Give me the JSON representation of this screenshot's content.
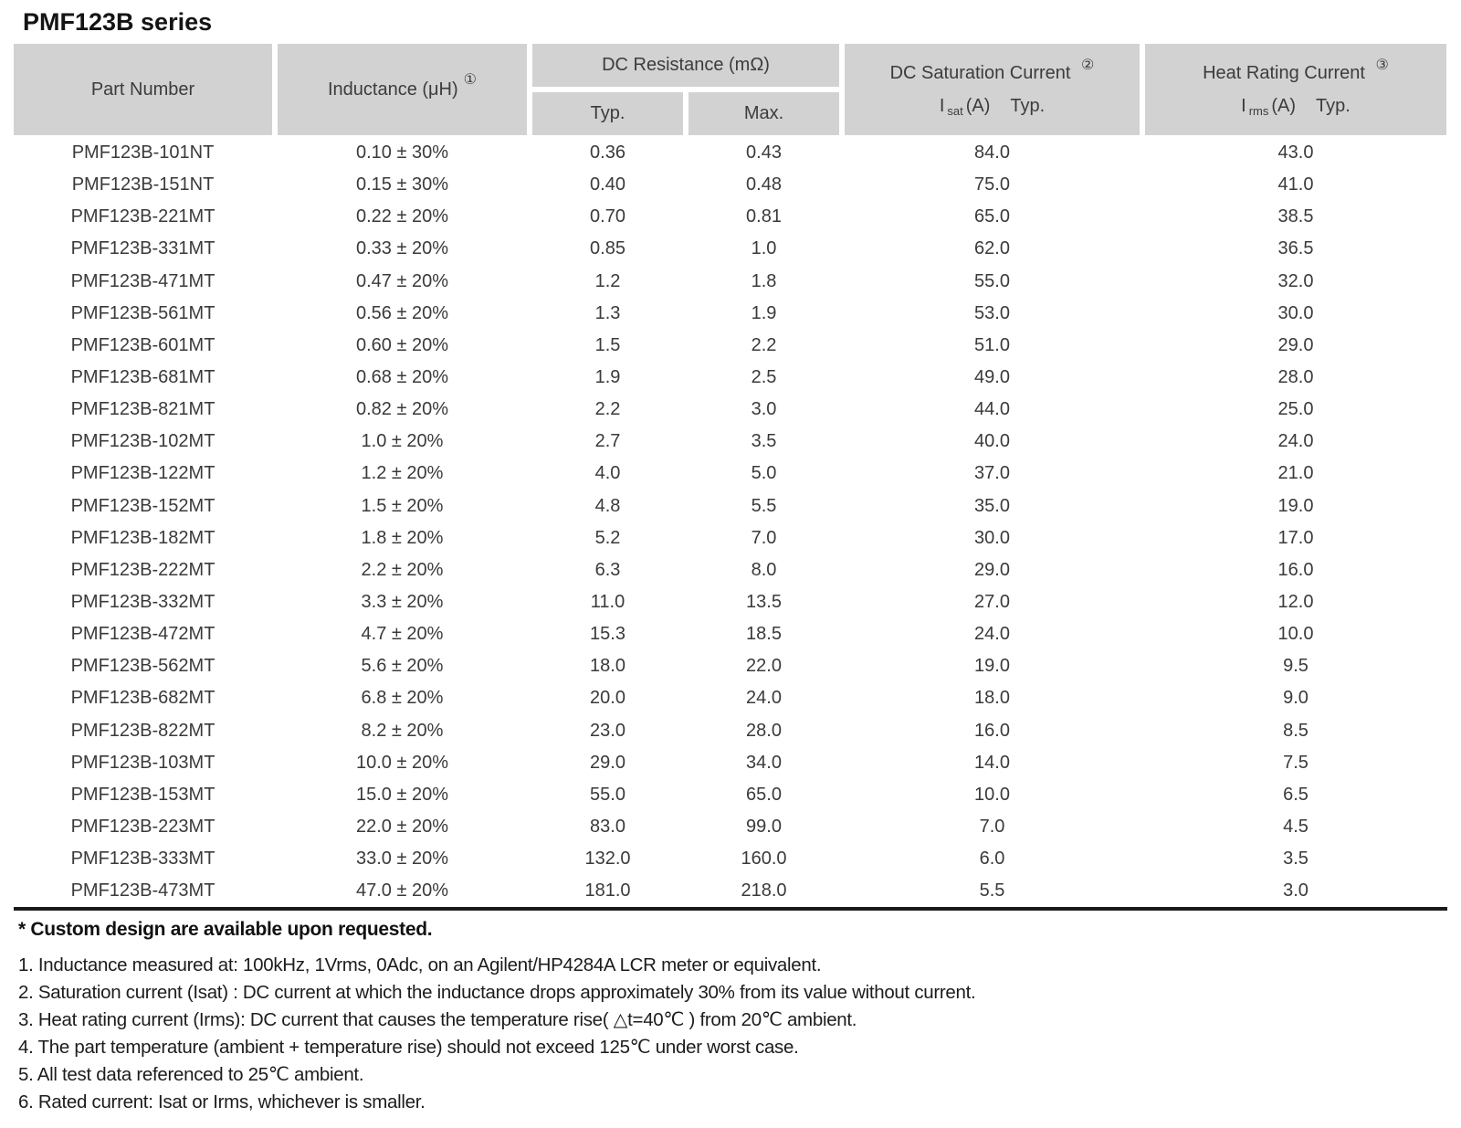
{
  "title": "PMF123B series",
  "colors": {
    "header_bg": "#d2d2d2",
    "body_text": "#3a3a3a",
    "rule": "#1a1a1a"
  },
  "table": {
    "headers": {
      "part_number": "Part Number",
      "inductance": "Inductance (μH)",
      "inductance_note_ref": "①",
      "dc_resistance_group": "DC Resistance (mΩ)",
      "dcr_typ": "Typ.",
      "dcr_max": "Max.",
      "dc_saturation": "DC Saturation Current",
      "dc_saturation_note_ref": "②",
      "sat_line": {
        "base": "I",
        "sub": "sat",
        "unit": "(A)",
        "qual": "Typ."
      },
      "heat_rating": "Heat Rating Current",
      "heat_rating_note_ref": "③",
      "rms_line": {
        "base": "I",
        "sub": "rms",
        "unit": "(A)",
        "qual": "Typ."
      }
    },
    "rows": [
      [
        "PMF123B-101NT",
        "0.10 ± 30%",
        "0.36",
        "0.43",
        "84.0",
        "43.0"
      ],
      [
        "PMF123B-151NT",
        "0.15 ± 30%",
        "0.40",
        "0.48",
        "75.0",
        "41.0"
      ],
      [
        "PMF123B-221MT",
        "0.22 ± 20%",
        "0.70",
        "0.81",
        "65.0",
        "38.5"
      ],
      [
        "PMF123B-331MT",
        "0.33 ± 20%",
        "0.85",
        "1.0",
        "62.0",
        "36.5"
      ],
      [
        "PMF123B-471MT",
        "0.47 ± 20%",
        "1.2",
        "1.8",
        "55.0",
        "32.0"
      ],
      [
        "PMF123B-561MT",
        "0.56 ± 20%",
        "1.3",
        "1.9",
        "53.0",
        "30.0"
      ],
      [
        "PMF123B-601MT",
        "0.60 ± 20%",
        "1.5",
        "2.2",
        "51.0",
        "29.0"
      ],
      [
        "PMF123B-681MT",
        "0.68 ± 20%",
        "1.9",
        "2.5",
        "49.0",
        "28.0"
      ],
      [
        "PMF123B-821MT",
        "0.82 ± 20%",
        "2.2",
        "3.0",
        "44.0",
        "25.0"
      ],
      [
        "PMF123B-102MT",
        "1.0 ± 20%",
        "2.7",
        "3.5",
        "40.0",
        "24.0"
      ],
      [
        "PMF123B-122MT",
        "1.2 ± 20%",
        "4.0",
        "5.0",
        "37.0",
        "21.0"
      ],
      [
        "PMF123B-152MT",
        "1.5 ± 20%",
        "4.8",
        "5.5",
        "35.0",
        "19.0"
      ],
      [
        "PMF123B-182MT",
        "1.8 ± 20%",
        "5.2",
        "7.0",
        "30.0",
        "17.0"
      ],
      [
        "PMF123B-222MT",
        "2.2 ± 20%",
        "6.3",
        "8.0",
        "29.0",
        "16.0"
      ],
      [
        "PMF123B-332MT",
        "3.3 ± 20%",
        "11.0",
        "13.5",
        "27.0",
        "12.0"
      ],
      [
        "PMF123B-472MT",
        "4.7 ± 20%",
        "15.3",
        "18.5",
        "24.0",
        "10.0"
      ],
      [
        "PMF123B-562MT",
        "5.6 ± 20%",
        "18.0",
        "22.0",
        "19.0",
        "9.5"
      ],
      [
        "PMF123B-682MT",
        "6.8 ± 20%",
        "20.0",
        "24.0",
        "18.0",
        "9.0"
      ],
      [
        "PMF123B-822MT",
        "8.2 ± 20%",
        "23.0",
        "28.0",
        "16.0",
        "8.5"
      ],
      [
        "PMF123B-103MT",
        "10.0 ± 20%",
        "29.0",
        "34.0",
        "14.0",
        "7.5"
      ],
      [
        "PMF123B-153MT",
        "15.0 ± 20%",
        "55.0",
        "65.0",
        "10.0",
        "6.5"
      ],
      [
        "PMF123B-223MT",
        "22.0 ± 20%",
        "83.0",
        "99.0",
        "7.0",
        "4.5"
      ],
      [
        "PMF123B-333MT",
        "33.0 ± 20%",
        "132.0",
        "160.0",
        "6.0",
        "3.5"
      ],
      [
        "PMF123B-473MT",
        "47.0 ± 20%",
        "181.0",
        "218.0",
        "5.5",
        "3.0"
      ]
    ]
  },
  "footer": {
    "custom_note": "* Custom design are available upon requested.",
    "notes": [
      "1. Inductance measured at: 100kHz, 1Vrms, 0Adc, on an Agilent/HP4284A LCR meter or equivalent.",
      "2. Saturation current (Isat) : DC current at which the inductance drops approximately 30% from its value without current.",
      "3. Heat rating current (Irms): DC current that causes the temperature rise( △t=40℃ ) from 20℃ ambient.",
      "4. The part temperature (ambient + temperature rise) should not exceed 125℃ under worst case.",
      "5. All test data referenced to 25℃ ambient.",
      "6. Rated current: Isat or Irms, whichever is smaller."
    ]
  }
}
